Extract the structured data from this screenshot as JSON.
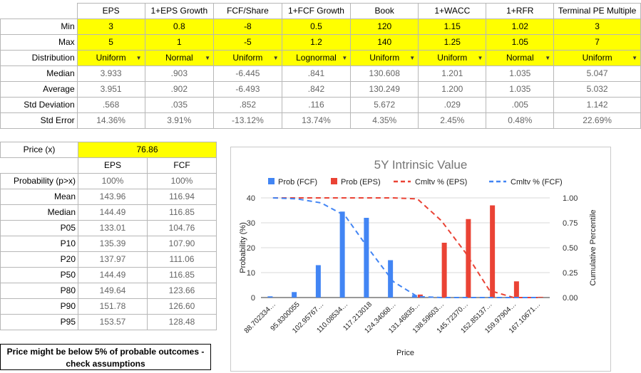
{
  "top_table": {
    "headers": [
      "EPS",
      "1+EPS Growth",
      "FCF/Share",
      "1+FCF Growth",
      "Book",
      "1+WACC",
      "1+RFR",
      "Terminal PE Multiple"
    ],
    "rows": [
      {
        "label": "Min",
        "values": [
          "3",
          "0.8",
          "-8",
          "0.5",
          "120",
          "1.15",
          "1.02",
          "3"
        ],
        "style": "yellow"
      },
      {
        "label": "Max",
        "values": [
          "5",
          "1",
          "-5",
          "1.2",
          "140",
          "1.25",
          "1.05",
          "7"
        ],
        "style": "yellow"
      },
      {
        "label": "Distribution",
        "values": [
          "Uniform",
          "Normal",
          "Uniform",
          "Lognormal",
          "Uniform",
          "Uniform",
          "Normal",
          "Uniform"
        ],
        "style": "dropdown"
      },
      {
        "label": "Median",
        "values": [
          "3.933",
          ".903",
          "-6.445",
          ".841",
          "130.608",
          "1.201",
          "1.035",
          "5.047"
        ],
        "style": "gray"
      },
      {
        "label": "Average",
        "values": [
          "3.951",
          ".902",
          "-6.493",
          ".842",
          "130.249",
          "1.200",
          "1.035",
          "5.032"
        ],
        "style": "gray"
      },
      {
        "label": "Std Deviation",
        "values": [
          ".568",
          ".035",
          ".852",
          ".116",
          "5.672",
          ".029",
          ".005",
          "1.142"
        ],
        "style": "gray"
      },
      {
        "label": "Std Error",
        "values": [
          "14.36%",
          "3.91%",
          "-13.12%",
          "13.74%",
          "4.35%",
          "2.45%",
          "0.48%",
          "22.69%"
        ],
        "style": "gray"
      }
    ]
  },
  "price": {
    "label": "Price (x)",
    "value": "76.86"
  },
  "bottom_table": {
    "headers": [
      "EPS",
      "FCF"
    ],
    "rows": [
      {
        "label": "Probability (p>x)",
        "values": [
          "100%",
          "100%"
        ]
      },
      {
        "label": "Mean",
        "values": [
          "143.96",
          "116.94"
        ]
      },
      {
        "label": "Median",
        "values": [
          "144.49",
          "116.85"
        ]
      },
      {
        "label": "P05",
        "values": [
          "133.01",
          "104.76"
        ]
      },
      {
        "label": "P10",
        "values": [
          "135.39",
          "107.90"
        ]
      },
      {
        "label": "P20",
        "values": [
          "137.97",
          "111.06"
        ]
      },
      {
        "label": "P50",
        "values": [
          "144.49",
          "116.85"
        ]
      },
      {
        "label": "P80",
        "values": [
          "149.64",
          "123.66"
        ]
      },
      {
        "label": "P90",
        "values": [
          "151.78",
          "126.60"
        ]
      },
      {
        "label": "P95",
        "values": [
          "153.57",
          "128.48"
        ]
      }
    ]
  },
  "warning": "Price might be below 5% of probable outcomes - check assumptions",
  "colors": {
    "yellow": "#ffff00",
    "fcf": "#4285f4",
    "eps": "#ea4335"
  },
  "chart_data": {
    "type": "bar",
    "title": "5Y Intrinsic Value",
    "xlabel": "Price",
    "ylabel": "Probability (%)",
    "y2label": "Cumulative Percentile",
    "ylim": [
      0,
      40
    ],
    "y2lim": [
      0,
      1
    ],
    "yticks": [
      "0",
      "10",
      "20",
      "30",
      "40"
    ],
    "y2ticks": [
      "0.00",
      "0.25",
      "0.50",
      "0.75",
      "1.00"
    ],
    "categories": [
      "88.702334…",
      "95.8300055",
      "102.95767…",
      "110.08534…",
      "117.213018",
      "124.34068…",
      "131.46835…",
      "138.59603…",
      "145.72370…",
      "152.85137…",
      "159.97904…",
      "167.10671…"
    ],
    "legend": [
      "Prob (FCF)",
      "Prob (EPS)",
      "Cmltv % (EPS)",
      "Cmltv % (FCF)"
    ],
    "legend_position": "top",
    "series": [
      {
        "name": "Prob (FCF)",
        "kind": "bar",
        "color": "#4285f4",
        "values": [
          0.5,
          2.2,
          13,
          34.5,
          32,
          15,
          1,
          0,
          0,
          0,
          0,
          0
        ]
      },
      {
        "name": "Prob (EPS)",
        "kind": "bar",
        "color": "#ea4335",
        "values": [
          0,
          0,
          0,
          0,
          0,
          0,
          1.2,
          22,
          31.5,
          37,
          6.5,
          0.3
        ]
      },
      {
        "name": "Cmltv % (EPS)",
        "kind": "line",
        "color": "#ea4335",
        "values": [
          1.0,
          1.0,
          1.0,
          1.0,
          1.0,
          1.0,
          0.99,
          0.77,
          0.45,
          0.07,
          0.0,
          0.0
        ]
      },
      {
        "name": "Cmltv % (FCF)",
        "kind": "line",
        "color": "#4285f4",
        "values": [
          1.0,
          0.99,
          0.95,
          0.82,
          0.48,
          0.16,
          0.01,
          0.0,
          0.0,
          0.0,
          0.0,
          0.0
        ]
      }
    ]
  }
}
